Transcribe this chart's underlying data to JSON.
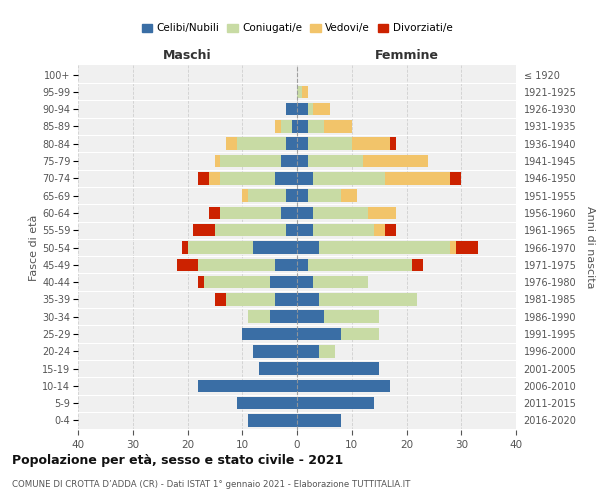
{
  "age_groups": [
    "0-4",
    "5-9",
    "10-14",
    "15-19",
    "20-24",
    "25-29",
    "30-34",
    "35-39",
    "40-44",
    "45-49",
    "50-54",
    "55-59",
    "60-64",
    "65-69",
    "70-74",
    "75-79",
    "80-84",
    "85-89",
    "90-94",
    "95-99",
    "100+"
  ],
  "birth_years": [
    "2016-2020",
    "2011-2015",
    "2006-2010",
    "2001-2005",
    "1996-2000",
    "1991-1995",
    "1986-1990",
    "1981-1985",
    "1976-1980",
    "1971-1975",
    "1966-1970",
    "1961-1965",
    "1956-1960",
    "1951-1955",
    "1946-1950",
    "1941-1945",
    "1936-1940",
    "1931-1935",
    "1926-1930",
    "1921-1925",
    "≤ 1920"
  ],
  "colors": {
    "celibi": "#3a6ea5",
    "coniugati": "#c8dba4",
    "vedovi": "#f2c46a",
    "divorziati": "#cc2200"
  },
  "males": {
    "celibi": [
      9,
      11,
      18,
      7,
      8,
      10,
      5,
      4,
      5,
      4,
      8,
      2,
      3,
      2,
      4,
      3,
      2,
      1,
      2,
      0,
      0
    ],
    "coniugati": [
      0,
      0,
      0,
      0,
      0,
      0,
      4,
      9,
      12,
      14,
      12,
      13,
      11,
      7,
      10,
      11,
      9,
      2,
      0,
      0,
      0
    ],
    "vedovi": [
      0,
      0,
      0,
      0,
      0,
      0,
      0,
      0,
      0,
      0,
      0,
      0,
      0,
      1,
      2,
      1,
      2,
      1,
      0,
      0,
      0
    ],
    "divorziati": [
      0,
      0,
      0,
      0,
      0,
      0,
      0,
      2,
      1,
      4,
      1,
      4,
      2,
      0,
      2,
      0,
      0,
      0,
      0,
      0,
      0
    ]
  },
  "females": {
    "celibi": [
      8,
      14,
      17,
      15,
      4,
      8,
      5,
      4,
      3,
      2,
      4,
      3,
      3,
      2,
      3,
      2,
      2,
      2,
      2,
      0,
      0
    ],
    "coniugati": [
      0,
      0,
      0,
      0,
      3,
      7,
      10,
      18,
      10,
      19,
      24,
      11,
      10,
      6,
      13,
      10,
      8,
      3,
      1,
      1,
      0
    ],
    "vedovi": [
      0,
      0,
      0,
      0,
      0,
      0,
      0,
      0,
      0,
      0,
      1,
      2,
      5,
      3,
      12,
      12,
      7,
      5,
      3,
      1,
      0
    ],
    "divorziati": [
      0,
      0,
      0,
      0,
      0,
      0,
      0,
      0,
      0,
      2,
      4,
      2,
      0,
      0,
      2,
      0,
      1,
      0,
      0,
      0,
      0
    ]
  },
  "xlim": 40,
  "title": "Popolazione per età, sesso e stato civile - 2021",
  "subtitle": "COMUNE DI CROTTA D’ADDA (CR) - Dati ISTAT 1° gennaio 2021 - Elaborazione TUTTITALIA.IT",
  "xlabel_left": "Maschi",
  "xlabel_right": "Femmine",
  "ylabel_left": "Fasce di età",
  "ylabel_right": "Anni di nascita",
  "legend_labels": [
    "Celibi/Nubili",
    "Coniugati/e",
    "Vedovi/e",
    "Divorziati/e"
  ],
  "bg_color": "#ffffff",
  "plot_bg": "#f0f0f0",
  "grid_color": "#cccccc"
}
